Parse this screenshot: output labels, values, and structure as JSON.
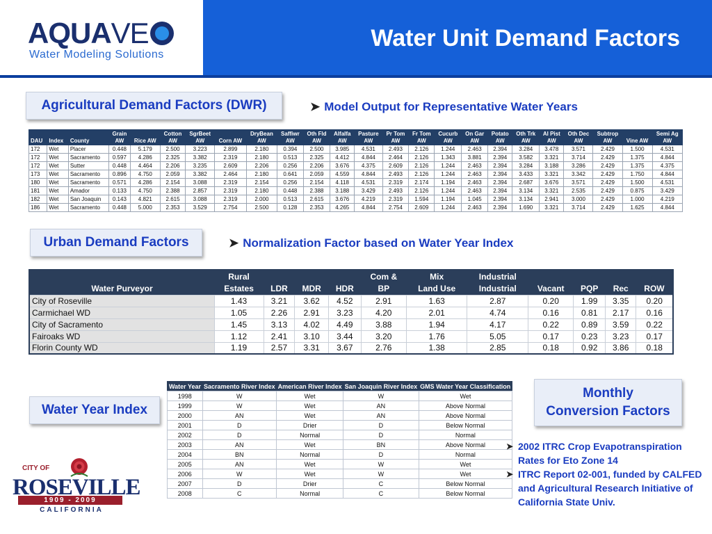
{
  "header": {
    "logo_bold": "AQUA",
    "logo_thin": "VE",
    "logo_sub": "Water Modeling Solutions",
    "title": "Water Unit Demand Factors"
  },
  "agricultural": {
    "label": "Agricultural Demand Factors (DWR)",
    "bullet": "Model Output for Representative Water Years",
    "columns": [
      [
        "DAU"
      ],
      [
        "Index"
      ],
      [
        "County"
      ],
      [
        "Grain",
        "AW"
      ],
      [
        "Rice AW"
      ],
      [
        "Cotton",
        "AW"
      ],
      [
        "SgrBeet",
        "AW"
      ],
      [
        "Corn AW"
      ],
      [
        "DryBean",
        "AW"
      ],
      [
        "Saffiwr",
        "AW"
      ],
      [
        "Oth Fld",
        "AW"
      ],
      [
        "Alfalfa",
        "AW"
      ],
      [
        "Pasture",
        "AW"
      ],
      [
        "Pr Tom",
        "AW"
      ],
      [
        "Fr Tom",
        "AW"
      ],
      [
        "Cucurb",
        "AW"
      ],
      [
        "On Gar",
        "AW"
      ],
      [
        "Potato",
        "AW"
      ],
      [
        "Oth Trk",
        "AW"
      ],
      [
        "Al Pist",
        "AW"
      ],
      [
        "Oth Dec",
        "AW"
      ],
      [
        "Subtrop",
        "AW"
      ],
      [
        "Vine AW"
      ],
      [
        "Semi Ag",
        "AW"
      ]
    ],
    "rows": [
      [
        "172",
        "Wet",
        "Placer",
        "0.448",
        "5.179",
        "2.500",
        "3.223",
        "2.899",
        "2.180",
        "0.394",
        "2.500",
        "3.985",
        "4.531",
        "2.493",
        "2.126",
        "1.244",
        "2.463",
        "2.394",
        "3.284",
        "3.478",
        "3.571",
        "2.429",
        "1.500",
        "4.531"
      ],
      [
        "172",
        "Wet",
        "Sacramento",
        "0.597",
        "4.286",
        "2.325",
        "3.382",
        "2.319",
        "2.180",
        "0.513",
        "2.325",
        "4.412",
        "4.844",
        "2.464",
        "2.126",
        "1.343",
        "3.881",
        "2.394",
        "3.582",
        "3.321",
        "3.714",
        "2.429",
        "1.375",
        "4.844"
      ],
      [
        "172",
        "Wet",
        "Sutter",
        "0.448",
        "4.464",
        "2.206",
        "3.235",
        "2.609",
        "2.206",
        "0.256",
        "2.206",
        "3.676",
        "4.375",
        "2.609",
        "2.126",
        "1.244",
        "2.463",
        "2.394",
        "3.284",
        "3.188",
        "3.286",
        "2.429",
        "1.375",
        "4.375"
      ],
      [
        "173",
        "Wet",
        "Sacramento",
        "0.896",
        "4.750",
        "2.059",
        "3.382",
        "2.464",
        "2.180",
        "0.641",
        "2.059",
        "4.559",
        "4.844",
        "2.493",
        "2.126",
        "1.244",
        "2.463",
        "2.394",
        "3.433",
        "3.321",
        "3.342",
        "2.429",
        "1.750",
        "4.844"
      ],
      [
        "180",
        "Wet",
        "Sacramento",
        "0.571",
        "4.286",
        "2.154",
        "3.088",
        "2.319",
        "2.154",
        "0.256",
        "2.154",
        "4.118",
        "4.531",
        "2.319",
        "2.174",
        "1.194",
        "2.463",
        "2.394",
        "2.687",
        "3.676",
        "3.571",
        "2.429",
        "1.500",
        "4.531"
      ],
      [
        "181",
        "Wet",
        "Amador",
        "0.133",
        "4.750",
        "2.388",
        "2.857",
        "2.319",
        "2.180",
        "0.448",
        "2.388",
        "3.188",
        "3.429",
        "2.493",
        "2.126",
        "1.244",
        "2.463",
        "2.394",
        "3.134",
        "3.321",
        "2.535",
        "2.429",
        "0.875",
        "3.429"
      ],
      [
        "182",
        "Wet",
        "San Joaquin",
        "0.143",
        "4.821",
        "2.615",
        "3.088",
        "2.319",
        "2.000",
        "0.513",
        "2.615",
        "3.676",
        "4.219",
        "2.319",
        "1.594",
        "1.194",
        "1.045",
        "2.394",
        "3.134",
        "2.941",
        "3.000",
        "2.429",
        "1.000",
        "4.219"
      ],
      [
        "186",
        "Wet",
        "Sacramento",
        "0.448",
        "5.000",
        "2.353",
        "3.529",
        "2.754",
        "2.500",
        "0.128",
        "2.353",
        "4.265",
        "4.844",
        "2.754",
        "2.609",
        "1.244",
        "2.463",
        "2.394",
        "1.690",
        "3.321",
        "3.714",
        "2.429",
        "1.625",
        "4.844"
      ]
    ]
  },
  "urban": {
    "label": "Urban Demand Factors",
    "bullet": "Normalization Factor based on Water Year Index",
    "header_top": [
      "",
      "Rural",
      "",
      "",
      "",
      "Com &",
      "Mix",
      "Industrial",
      "",
      "",
      "",
      ""
    ],
    "header_bottom": [
      "Water Purveyor",
      "Estates",
      "LDR",
      "MDR",
      "HDR",
      "BP",
      "Land Use",
      "Industrial",
      "Vacant",
      "PQP",
      "Rec",
      "ROW"
    ],
    "rows": [
      [
        "City of Roseville",
        "1.43",
        "3.21",
        "3.62",
        "4.52",
        "2.91",
        "1.63",
        "2.87",
        "0.20",
        "1.99",
        "3.35",
        "0.20"
      ],
      [
        "Carmichael WD",
        "1.05",
        "2.26",
        "2.91",
        "3.23",
        "4.20",
        "2.01",
        "4.74",
        "0.16",
        "0.81",
        "2.17",
        "0.16"
      ],
      [
        "City of Sacramento",
        "1.45",
        "3.13",
        "4.02",
        "4.49",
        "3.88",
        "1.94",
        "4.17",
        "0.22",
        "0.89",
        "3.59",
        "0.22"
      ],
      [
        "Fairoaks WD",
        "1.12",
        "2.41",
        "3.10",
        "3.44",
        "3.20",
        "1.76",
        "5.05",
        "0.17",
        "0.23",
        "3.23",
        "0.17"
      ],
      [
        "Florin County WD",
        "1.19",
        "2.57",
        "3.31",
        "3.67",
        "2.76",
        "1.38",
        "2.85",
        "0.18",
        "0.92",
        "3.86",
        "0.18"
      ]
    ]
  },
  "water_year": {
    "label": "Water Year Index",
    "columns": [
      "Water Year",
      "Sacramento River Index",
      "American River Index",
      "San Joaquin River Index",
      "GMS Water Year Classification"
    ],
    "rows": [
      [
        "1998",
        "W",
        "Wet",
        "W",
        "Wet"
      ],
      [
        "1999",
        "W",
        "Wet",
        "AN",
        "Above Normal"
      ],
      [
        "2000",
        "AN",
        "Wet",
        "AN",
        "Above Normal"
      ],
      [
        "2001",
        "D",
        "Drier",
        "D",
        "Below Normal"
      ],
      [
        "2002",
        "D",
        "Normal",
        "D",
        "Normal"
      ],
      [
        "2003",
        "AN",
        "Wet",
        "BN",
        "Above Normal"
      ],
      [
        "2004",
        "BN",
        "Normal",
        "D",
        "Normal"
      ],
      [
        "2005",
        "AN",
        "Wet",
        "W",
        "Wet"
      ],
      [
        "2006",
        "W",
        "Wet",
        "W",
        "Wet"
      ],
      [
        "2007",
        "D",
        "Drier",
        "C",
        "Below Normal"
      ],
      [
        "2008",
        "C",
        "Normal",
        "C",
        "Below Normal"
      ]
    ]
  },
  "monthly": {
    "label_line1": "Monthly",
    "label_line2": "Conversion Factors",
    "notes": [
      "2002 ITRC Crop Evapotranspiration Rates for Eto Zone 14",
      "ITRC Report 02-001, funded by CALFED and Agricultural Research Initiative of  California State Univ."
    ]
  },
  "roseville_logo": {
    "city_of": "CITY OF",
    "name": "ROSEVILLE",
    "years": "1909 - 2009",
    "state": "CALIFORNIA"
  },
  "colors": {
    "header_blue": "#1560d8",
    "label_text": "#1a3cc0",
    "table_header": "#2b3e5a"
  }
}
